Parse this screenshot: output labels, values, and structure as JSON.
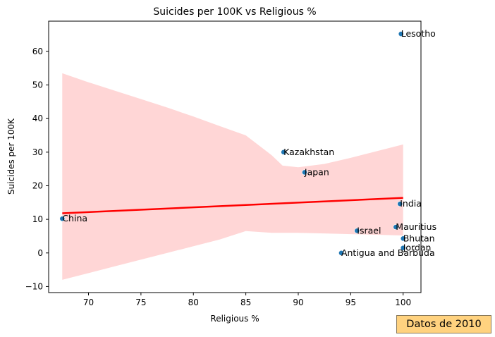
{
  "chart_data": {
    "type": "scatter",
    "title": "Suicides per 100K vs Religious %",
    "xlabel": "Religious %",
    "ylabel": "Suicides per 100K",
    "xlim": [
      66.2,
      101.7
    ],
    "ylim": [
      -11.8,
      69.0
    ],
    "xticks": [
      70,
      75,
      80,
      85,
      90,
      95,
      100
    ],
    "yticks": [
      -10,
      0,
      10,
      20,
      30,
      40,
      50,
      60
    ],
    "grid": false,
    "colors": {
      "points": "#1f77b4",
      "regression": "#ff0000",
      "band": "#ffcccc"
    },
    "points": [
      {
        "label": "China",
        "x": 67.5,
        "y": 10.2
      },
      {
        "label": "Kazakhstan",
        "x": 88.6,
        "y": 30.0
      },
      {
        "label": "Japan",
        "x": 90.6,
        "y": 24.0
      },
      {
        "label": "Antigua and Barbuda",
        "x": 94.1,
        "y": 0.0
      },
      {
        "label": "Israel",
        "x": 95.6,
        "y": 6.6
      },
      {
        "label": "Mauritius",
        "x": 99.3,
        "y": 7.7
      },
      {
        "label": "Lesotho",
        "x": 99.8,
        "y": 65.2
      },
      {
        "label": "India",
        "x": 99.7,
        "y": 14.6
      },
      {
        "label": "Bhutan",
        "x": 100.0,
        "y": 4.3
      },
      {
        "label": "Jordan",
        "x": 100.0,
        "y": 1.5
      }
    ],
    "regression_line": {
      "x": [
        67.5,
        100.0
      ],
      "y": [
        11.8,
        16.4
      ]
    },
    "confidence_band": {
      "x": [
        67.5,
        70,
        72.5,
        75,
        77.5,
        80,
        82.5,
        85,
        87.5,
        88.5,
        90,
        92.5,
        95,
        97.5,
        100
      ],
      "upper": [
        53.5,
        50.8,
        48.3,
        45.8,
        43.3,
        40.6,
        37.8,
        35.0,
        29.0,
        26.0,
        25.5,
        26.5,
        28.3,
        30.3,
        32.3
      ],
      "lower": [
        -8.0,
        -6.0,
        -4.0,
        -2.0,
        0.0,
        2.0,
        4.0,
        6.5,
        6.0,
        6.0,
        6.0,
        5.8,
        5.6,
        5.4,
        5.2
      ]
    }
  },
  "annotation": {
    "text": "Datos de 2010"
  }
}
